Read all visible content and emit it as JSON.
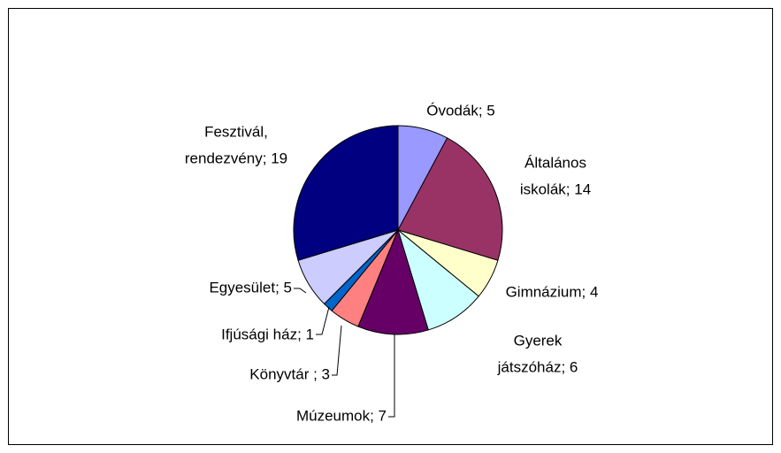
{
  "chart_data": {
    "type": "pie",
    "values": [
      5,
      14,
      4,
      6,
      7,
      3,
      1,
      5,
      19
    ],
    "value_labels": [
      [
        "Óvodák; 5"
      ],
      [
        "Általános",
        "iskolák; 14"
      ],
      [
        "Gimnázium; 4"
      ],
      [
        "Gyerek",
        "játszóház; 6"
      ],
      [
        "Múzeumok; 7"
      ],
      [
        "Könyvtár ; 3"
      ],
      [
        "Ifjúsági ház; 1"
      ],
      [
        "Egyesület; 5"
      ],
      [
        "Fesztivál,",
        "rendezvény; 19"
      ]
    ],
    "colors": [
      "#9999ff",
      "#993366",
      "#ffffcc",
      "#ccffff",
      "#660066",
      "#ff8080",
      "#0066cc",
      "#ccccff",
      "#000080"
    ]
  }
}
